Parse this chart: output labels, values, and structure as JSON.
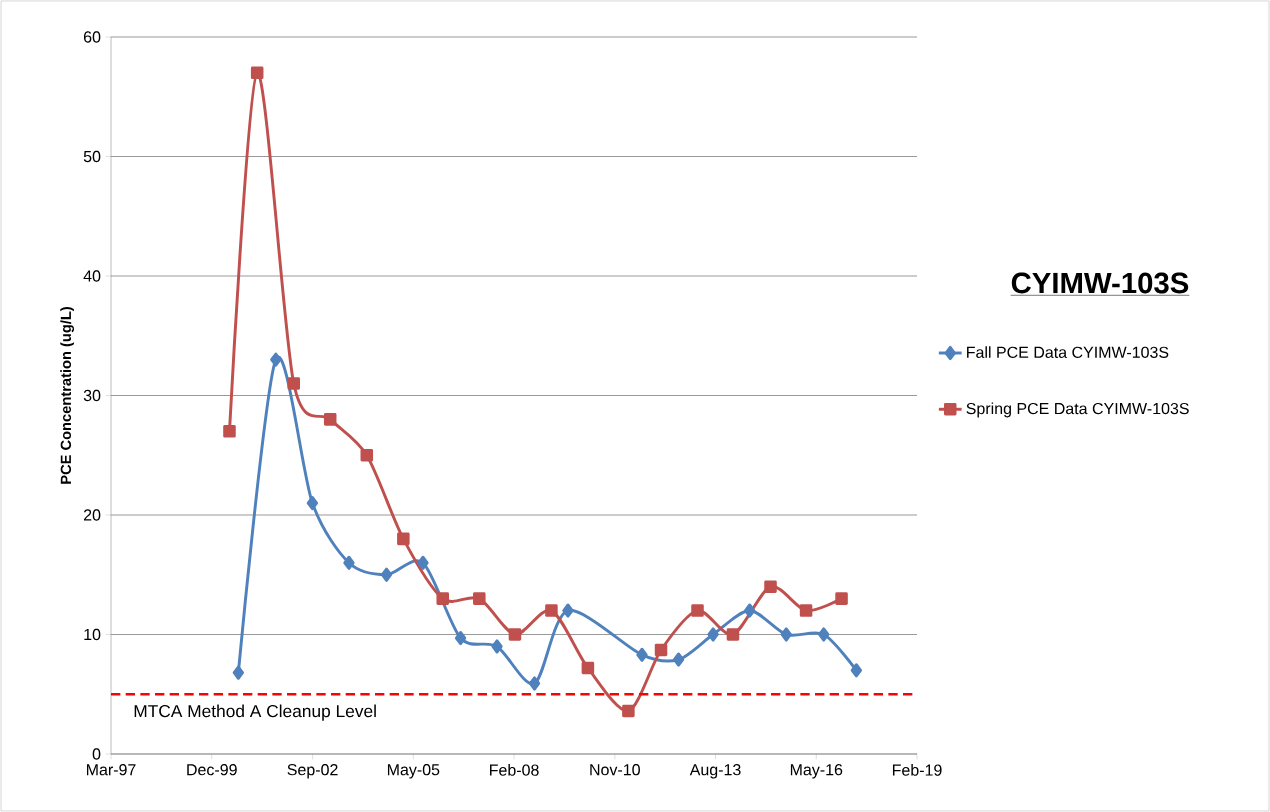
{
  "chart_data": {
    "type": "line",
    "title": "CYIMW-103S",
    "ylabel": "PCE Concentration (ug/L)",
    "xlim": [
      "1997-03-10",
      "2019-02-04"
    ],
    "xticks": [
      {
        "value": "1997-03-10",
        "label": "Mar-97"
      },
      {
        "value": "1999-12-05",
        "label": "Dec-99"
      },
      {
        "value": "2002-09-01",
        "label": "Sep-02"
      },
      {
        "value": "2005-05-28",
        "label": "May-05"
      },
      {
        "value": "2008-02-22",
        "label": "Feb-08"
      },
      {
        "value": "2010-11-18",
        "label": "Nov-10"
      },
      {
        "value": "2013-08-14",
        "label": "Aug-13"
      },
      {
        "value": "2016-05-10",
        "label": "May-16"
      },
      {
        "value": "2019-02-04",
        "label": "Feb-19"
      }
    ],
    "ylim": [
      0,
      60
    ],
    "yticks": [
      0,
      10,
      20,
      30,
      40,
      50,
      60
    ],
    "grid": "y",
    "legend": "right",
    "series": [
      {
        "name": "Fall PCE Data CYIMW-103S",
        "color": "#4f81bd",
        "marker": "diamond",
        "x": [
          "2000-08-25",
          "2001-09-01",
          "2002-08-30",
          "2003-08-28",
          "2004-09-04",
          "2005-09-01",
          "2006-09-09",
          "2007-09-06",
          "2008-09-12",
          "2009-08-10",
          "2011-08-15",
          "2012-08-12",
          "2013-07-21",
          "2014-07-19",
          "2015-07-17",
          "2016-07-23",
          "2017-06-12"
        ],
        "values": [
          6.8,
          33,
          21,
          16,
          15,
          16,
          9.7,
          9,
          5.9,
          12,
          8.3,
          7.9,
          10,
          12,
          10,
          10,
          7
        ]
      },
      {
        "name": "Spring PCE Data CYIMW-103S",
        "color": "#c0504d",
        "marker": "square",
        "x": [
          "2000-05-29",
          "2001-02-28",
          "2002-02-26",
          "2003-02-23",
          "2004-02-21",
          "2005-02-18",
          "2006-03-16",
          "2007-03-14",
          "2008-03-02",
          "2009-02-27",
          "2010-02-24",
          "2011-04-02",
          "2012-02-20",
          "2013-02-16",
          "2014-02-03",
          "2015-02-11",
          "2016-01-30",
          "2017-01-16"
        ],
        "values": [
          27,
          57,
          31,
          28,
          25,
          18,
          13,
          13,
          10,
          12,
          7.2,
          3.6,
          8.7,
          12,
          10,
          14,
          12,
          13
        ]
      }
    ],
    "ref_lines": [
      {
        "axis": "y",
        "value": 5,
        "label": "MTCA Method A Cleanup Level",
        "color": "#ff0000",
        "line_style": "dashed"
      }
    ]
  }
}
